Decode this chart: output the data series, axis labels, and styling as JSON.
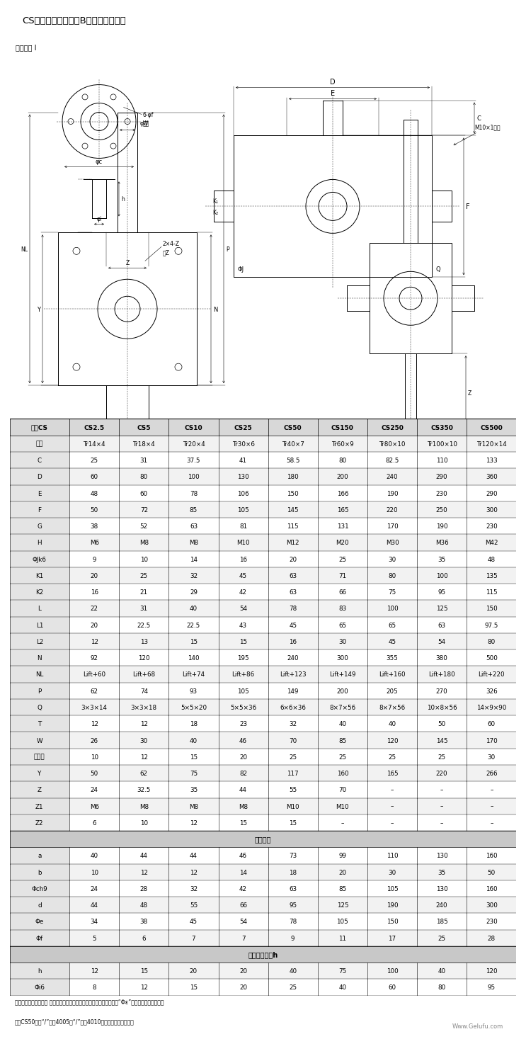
{
  "title": "CS型蜗轮丝杠升降机B型结构联结尺寸",
  "website": "Www.Gelufu.com",
  "table_header": [
    "型号CS",
    "CS2.5",
    "CS5",
    "CS10",
    "CS25",
    "CS50",
    "CS150",
    "CS250",
    "CS350",
    "CS500"
  ],
  "rows": [
    [
      "丝杠",
      "Tr14×4",
      "Tr18×4",
      "Tr20×4",
      "Tr30×6",
      "Tr40×7",
      "Tr60×9",
      "Tr80×10",
      "Tr100×10",
      "Tr120×14"
    ],
    [
      "C",
      "25",
      "31",
      "37.5",
      "41",
      "58.5",
      "80",
      "82.5",
      "110",
      "133"
    ],
    [
      "D",
      "60",
      "80",
      "100",
      "130",
      "180",
      "200",
      "240",
      "290",
      "360"
    ],
    [
      "E",
      "48",
      "60",
      "78",
      "106",
      "150",
      "166",
      "190",
      "230",
      "290"
    ],
    [
      "F",
      "50",
      "72",
      "85",
      "105",
      "145",
      "165",
      "220",
      "250",
      "300"
    ],
    [
      "G",
      "38",
      "52",
      "63",
      "81",
      "115",
      "131",
      "170",
      "190",
      "230"
    ],
    [
      "H",
      "M6",
      "M8",
      "M8",
      "M10",
      "M12",
      "M20",
      "M30",
      "M36",
      "M42"
    ],
    [
      "ΦJk6",
      "9",
      "10",
      "14",
      "16",
      "20",
      "25",
      "30",
      "35",
      "48"
    ],
    [
      "K1",
      "20",
      "25",
      "32",
      "45",
      "63",
      "71",
      "80",
      "100",
      "135"
    ],
    [
      "K2",
      "16",
      "21",
      "29",
      "42",
      "63",
      "66",
      "75",
      "95",
      "115"
    ],
    [
      "L",
      "22",
      "31",
      "40",
      "54",
      "78",
      "83",
      "100",
      "125",
      "150"
    ],
    [
      "L1",
      "20",
      "22.5",
      "22.5",
      "43",
      "45",
      "65",
      "65",
      "63",
      "97.5"
    ],
    [
      "L2",
      "12",
      "13",
      "15",
      "15",
      "16",
      "30",
      "45",
      "54",
      "80"
    ],
    [
      "N",
      "92",
      "120",
      "140",
      "195",
      "240",
      "300",
      "355",
      "380",
      "500"
    ],
    [
      "NL",
      "Lift+60",
      "Lift+68",
      "Lift+74",
      "Lift+86",
      "Lift+123",
      "Lift+149",
      "Lift+160",
      "Lift+180",
      "Lift+220"
    ],
    [
      "P",
      "62",
      "74",
      "93",
      "105",
      "149",
      "200",
      "205",
      "270",
      "326"
    ],
    [
      "Q",
      "3×3×14",
      "3×3×18",
      "5×5×20",
      "5×5×36",
      "6×6×36",
      "8×7×56",
      "8×7×56",
      "10×8×56",
      "14×9×90"
    ],
    [
      "T",
      "12",
      "12",
      "18",
      "23",
      "32",
      "40",
      "40",
      "50",
      "60"
    ],
    [
      "W",
      "26",
      "30",
      "40",
      "46",
      "70",
      "85",
      "120",
      "145",
      "170"
    ],
    [
      "拓展尺",
      "10",
      "12",
      "15",
      "20",
      "25",
      "25",
      "25",
      "25",
      "30"
    ],
    [
      "Y",
      "50",
      "62",
      "75",
      "82",
      "117",
      "160",
      "165",
      "220",
      "266"
    ],
    [
      "Z",
      "24",
      "32.5",
      "35",
      "44",
      "55",
      "70",
      "–",
      "–",
      "–"
    ],
    [
      "Z1",
      "M6",
      "M8",
      "M8",
      "M8",
      "M10",
      "M10",
      "–",
      "–",
      "–"
    ],
    [
      "Z2",
      "6",
      "10",
      "12",
      "15",
      "15",
      "–",
      "–",
      "–",
      "–"
    ],
    [
      "section_motion",
      "运动螺母"
    ],
    [
      "a",
      "40",
      "44",
      "44",
      "46",
      "73",
      "99",
      "110",
      "130",
      "160"
    ],
    [
      "b",
      "10",
      "12",
      "12",
      "14",
      "18",
      "20",
      "30",
      "35",
      "50"
    ],
    [
      "Φch9",
      "24",
      "28",
      "32",
      "42",
      "63",
      "85",
      "105",
      "130",
      "160"
    ],
    [
      "d",
      "44",
      "48",
      "55",
      "66",
      "95",
      "125",
      "190",
      "240",
      "300"
    ],
    [
      "Φe",
      "34",
      "38",
      "45",
      "54",
      "78",
      "105",
      "150",
      "185",
      "230"
    ],
    [
      "Φf",
      "5",
      "6",
      "7",
      "7",
      "9",
      "11",
      "17",
      "25",
      "28"
    ],
    [
      "section_connector",
      "丝杠接头类型h"
    ],
    [
      "h",
      "12",
      "15",
      "20",
      "20",
      "40",
      "75",
      "100",
      "40",
      "120"
    ],
    [
      "Φi6",
      "8",
      "12",
      "15",
      "20",
      "25",
      "40",
      "60",
      "80",
      "95"
    ]
  ],
  "note_line1": "注：运动螺母尺寸中（ ）内的数字仅对滚珠丝杠型适用，且滚珠丝杠的“Φε”在外层有标准的沉孔，",
  "note_line2": "其中CS50型的“/”前为4005，“/”后为4010滚珠丝杠的螺母尺寸。",
  "bg_color": "#ffffff",
  "line_color": "#000000",
  "header_bg": "#d8d8d8",
  "section_bg": "#c8c8c8"
}
